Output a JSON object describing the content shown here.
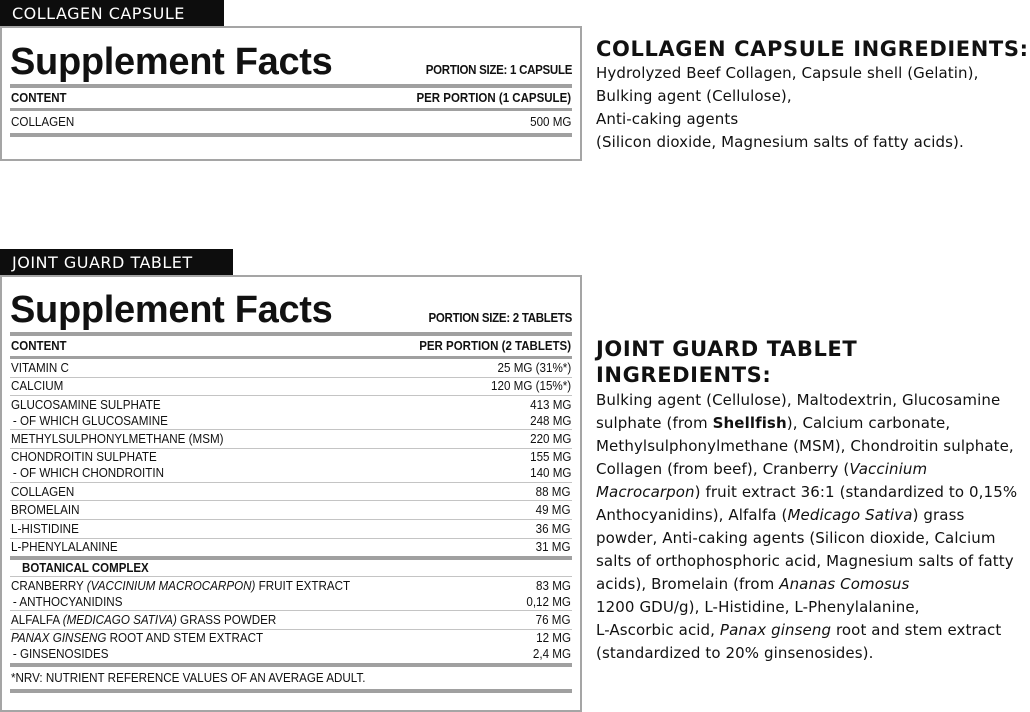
{
  "collagen": {
    "tag": "COLLAGEN CAPSULE",
    "title": "Supplement Facts",
    "portion": "PORTION SIZE: 1 CAPSULE",
    "header": {
      "content": "CONTENT",
      "per": "PER PORTION (1 CAPSULE)"
    },
    "rows": [
      {
        "name": "COLLAGEN",
        "value": "500 MG"
      }
    ],
    "ingredients_title": "COLLAGEN CAPSULE INGREDIENTS:",
    "ingredients": [
      {
        "t": "Hydrolyzed Beef Collagen, Capsule shell (Gelatin),\nBulking agent (Cellulose),\nAnti-caking agents\n(Silicon dioxide, Magnesium salts of fatty acids)."
      }
    ]
  },
  "joint": {
    "tag": "JOINT GUARD TABLET",
    "title": "Supplement Facts",
    "portion": "PORTION SIZE: 2 TABLETS",
    "header": {
      "content": "CONTENT",
      "per": "PER PORTION (2 TABLETS)"
    },
    "rows": [
      {
        "name": [
          {
            "t": "VITAMIN C"
          }
        ],
        "value": "25 MG (31%*)"
      },
      {
        "name": [
          {
            "t": "CALCIUM"
          }
        ],
        "value": "120 MG (15%*)"
      },
      {
        "name": [
          {
            "t": "GLUCOSAMINE SULPHATE"
          }
        ],
        "value": "413 MG",
        "sub": "- OF WHICH GLUCOSAMINE",
        "sub_value": "248 MG"
      },
      {
        "name": [
          {
            "t": "METHYLSULPHONYLMETHANE (MSM)"
          }
        ],
        "value": "220 MG"
      },
      {
        "name": [
          {
            "t": "CHONDROITIN SULPHATE"
          }
        ],
        "value": "155 MG",
        "sub": "- OF WHICH CHONDROITIN",
        "sub_value": "140 MG"
      },
      {
        "name": [
          {
            "t": "COLLAGEN"
          }
        ],
        "value": "88 MG"
      },
      {
        "name": [
          {
            "t": "BROMELAIN"
          }
        ],
        "value": "49 MG"
      },
      {
        "name": [
          {
            "t": "L-HISTIDINE"
          }
        ],
        "value": "36 MG"
      },
      {
        "name": [
          {
            "t": "L-PHENYLALANINE"
          }
        ],
        "value": "31 MG"
      }
    ],
    "botanical_title": "BOTANICAL COMPLEX",
    "botanical_rows": [
      {
        "name": [
          {
            "t": "CRANBERRY "
          },
          {
            "t": "(VACCINIUM MACROCARPON)",
            "i": true
          },
          {
            "t": " FRUIT EXTRACT"
          }
        ],
        "value": "83 MG",
        "sub": "- ANTHOCYANIDINS",
        "sub_value": "0,12 MG"
      },
      {
        "name": [
          {
            "t": "ALFALFA "
          },
          {
            "t": "(MEDICAGO SATIVA)",
            "i": true
          },
          {
            "t": " GRASS POWDER"
          }
        ],
        "value": "76 MG"
      },
      {
        "name": [
          {
            "t": "PANAX GINSENG",
            "i": true
          },
          {
            "t": " ROOT AND STEM EXTRACT"
          }
        ],
        "value": "12 MG",
        "sub": "- GINSENOSIDES",
        "sub_value": "2,4 MG"
      }
    ],
    "footnote": "*NRV: NUTRIENT REFERENCE VALUES OF AN AVERAGE ADULT.",
    "ingredients_title": "JOINT GUARD TABLET\nINGREDIENTS:",
    "ingredients": [
      {
        "t": "Bulking agent (Cellulose), Maltodextrin, Glucosamine sulphate (from "
      },
      {
        "t": "Shellfish",
        "b": true
      },
      {
        "t": "), Calcium carbonate, Methylsulphonylmethane (MSM), Chondroitin sulphate, Collagen (from beef), Cranberry ("
      },
      {
        "t": "Vaccinium Macrocarpon",
        "i": true
      },
      {
        "t": ") fruit extract 36:1 (standardized to 0,15% Anthocyanidins), Alfalfa ("
      },
      {
        "t": "Medicago Sativa",
        "i": true
      },
      {
        "t": ") grass powder, Anti-caking agents (Silicon dioxide, Calcium salts of orthophosphoric acid, Magnesium salts of fatty acids), Bromelain (from "
      },
      {
        "t": "Ananas Comosus",
        "i": true
      },
      {
        "t": "\n1200 GDU/g), L-Histidine, L-Phenylalanine,\nL-Ascorbic acid, "
      },
      {
        "t": "Panax ginseng",
        "i": true
      },
      {
        "t": " root and stem extract\n(standardized to 20% ginsenosides)."
      }
    ]
  }
}
